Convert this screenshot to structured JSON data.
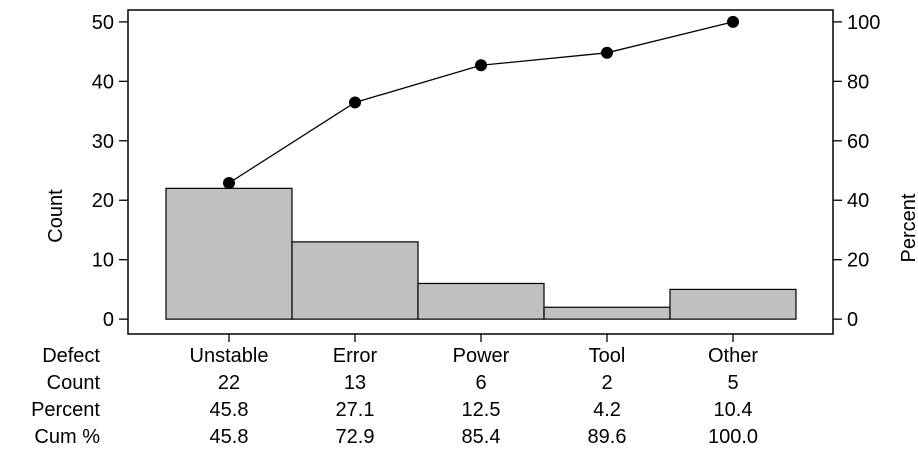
{
  "chart_data": {
    "type": "bar",
    "subtype": "pareto",
    "categories": [
      "Unstable",
      "Error",
      "Power",
      "Tool",
      "Other"
    ],
    "series": [
      {
        "values": [
          22,
          13,
          6,
          2,
          5
        ],
        "axis": "left",
        "mark": "bar"
      },
      {
        "values": [
          45.8,
          72.9,
          85.4,
          89.6,
          100.0
        ],
        "axis": "right",
        "mark": "line"
      }
    ],
    "ylabel": "Count",
    "y2label": "Percent",
    "ylim": [
      -2.5,
      52
    ],
    "y2lim": [
      -5,
      104
    ],
    "yticks": [
      0,
      10,
      20,
      30,
      40,
      50
    ],
    "y2ticks": [
      0,
      20,
      40,
      60,
      80,
      100
    ],
    "grid": false,
    "bar_color": "#c0c0c0",
    "table": {
      "header_label": "Defect",
      "row_labels": [
        "Count",
        "Percent",
        "Cum %"
      ],
      "rows": [
        [
          "22",
          "13",
          "6",
          "2",
          "5"
        ],
        [
          "45.8",
          "27.1",
          "12.5",
          "4.2",
          "10.4"
        ],
        [
          "45.8",
          "72.9",
          "85.4",
          "89.6",
          "100.0"
        ]
      ]
    }
  }
}
